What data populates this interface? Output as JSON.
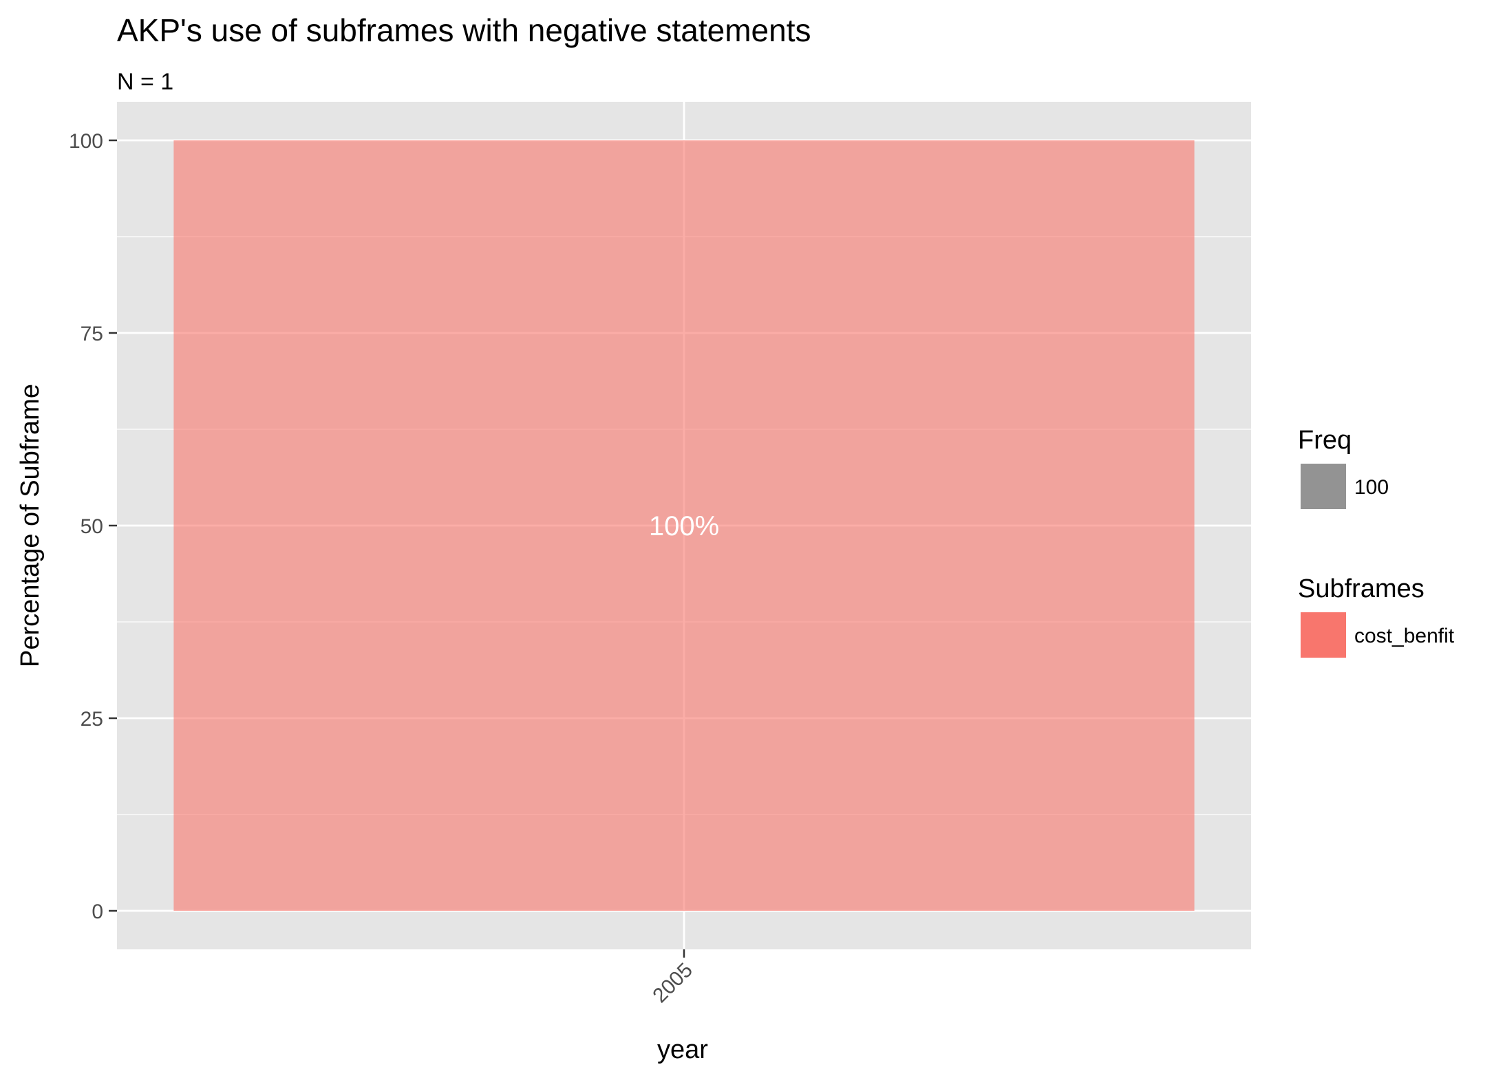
{
  "chart_data": {
    "type": "bar",
    "title": "AKP's use of subframes with negative statements",
    "subtitle": "N = 1",
    "xlabel": "year",
    "ylabel": "Percentage of Subframe",
    "categories": [
      "2005"
    ],
    "series": [
      {
        "name": "cost_benfit",
        "values": [
          100
        ],
        "color": "#F8766D"
      }
    ],
    "data_labels": [
      "100%"
    ],
    "ylim": [
      -5,
      105
    ],
    "y_ticks": [
      0,
      25,
      50,
      75,
      100
    ],
    "y_tick_labels": [
      "0",
      "25",
      "50",
      "75",
      "100"
    ],
    "grid": true,
    "legend_position": "right",
    "legends": [
      {
        "title": "Freq",
        "entries": [
          {
            "label": "100",
            "color": "#939393"
          }
        ]
      },
      {
        "title": "Subframes",
        "entries": [
          {
            "label": "cost_benfit",
            "color": "#F8766D"
          }
        ]
      }
    ],
    "colors": {
      "panel_background": "#E5E5E5",
      "grid_major": "#FFFFFF",
      "bar_fill": "#F8766D",
      "bar_opacity": 0.6,
      "data_label": "#FFFFFF"
    }
  }
}
